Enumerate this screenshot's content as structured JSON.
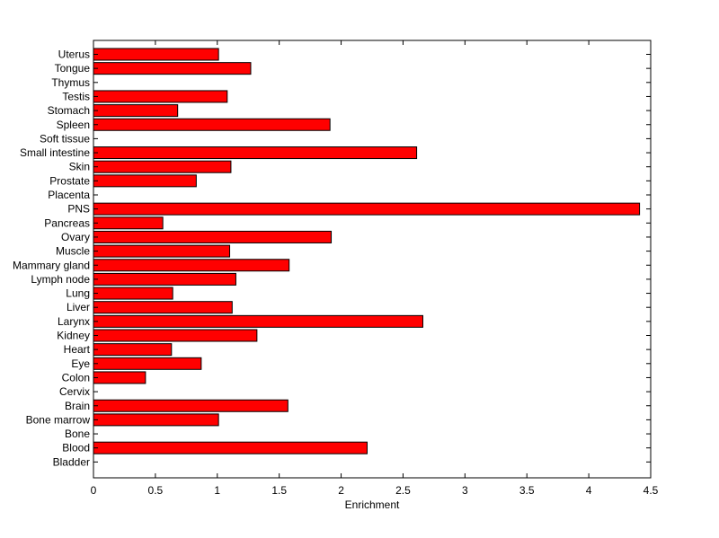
{
  "chart_data": {
    "type": "bar",
    "orientation": "horizontal",
    "title": "",
    "xlabel": "Enrichment",
    "ylabel": "",
    "xlim": [
      0,
      4.5
    ],
    "xticks": [
      0,
      0.5,
      1,
      1.5,
      2,
      2.5,
      3,
      3.5,
      4,
      4.5
    ],
    "xtick_labels": [
      "0",
      "0.5",
      "1",
      "1.5",
      "2",
      "2.5",
      "3",
      "3.5",
      "4",
      "4.5"
    ],
    "grid": false,
    "legend": "none",
    "bar_color": "#ff0000",
    "bar_edge_color": "#000000",
    "categories": [
      "Uterus",
      "Tongue",
      "Thymus",
      "Testis",
      "Stomach",
      "Spleen",
      "Soft tissue",
      "Small intestine",
      "Skin",
      "Prostate",
      "Placenta",
      "PNS",
      "Pancreas",
      "Ovary",
      "Muscle",
      "Mammary gland",
      "Lymph node",
      "Lung",
      "Liver",
      "Larynx",
      "Kidney",
      "Heart",
      "Eye",
      "Colon",
      "Cervix",
      "Brain",
      "Bone marrow",
      "Bone",
      "Blood",
      "Bladder"
    ],
    "values": [
      1.01,
      1.27,
      0,
      1.08,
      0.68,
      1.91,
      0,
      2.61,
      1.11,
      0.83,
      0,
      4.41,
      0.56,
      1.92,
      1.1,
      1.58,
      1.15,
      0.64,
      1.12,
      2.66,
      1.32,
      0.63,
      0.87,
      0.42,
      0,
      1.57,
      1.01,
      0,
      2.21,
      0
    ]
  }
}
